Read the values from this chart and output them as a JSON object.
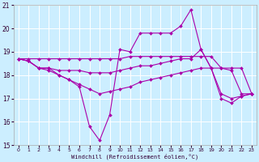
{
  "xlabel": "Windchill (Refroidissement éolien,°C)",
  "bg_color": "#cceeff",
  "grid_color": "#ffffff",
  "line_color": "#aa00aa",
  "xlim": [
    -0.5,
    23.5
  ],
  "ylim": [
    15,
    21
  ],
  "yticks": [
    15,
    16,
    17,
    18,
    19,
    20,
    21
  ],
  "xticks": [
    0,
    1,
    2,
    3,
    4,
    5,
    6,
    7,
    8,
    9,
    10,
    11,
    12,
    13,
    14,
    15,
    16,
    17,
    18,
    19,
    20,
    21,
    22,
    23
  ],
  "series": [
    {
      "x": [
        0,
        1,
        2,
        3,
        4,
        5,
        6,
        7,
        8,
        9,
        10,
        11,
        12,
        13,
        14,
        15,
        16,
        17,
        18,
        19,
        20,
        21,
        22,
        23
      ],
      "y": [
        18.7,
        18.6,
        18.3,
        18.3,
        18.0,
        17.8,
        17.5,
        15.8,
        15.2,
        16.3,
        19.1,
        19.0,
        19.8,
        19.8,
        19.8,
        19.8,
        20.1,
        20.8,
        19.1,
        18.3,
        17.0,
        16.8,
        17.1,
        17.2
      ]
    },
    {
      "x": [
        0,
        1,
        2,
        3,
        4,
        5,
        6,
        7,
        8,
        9,
        10,
        11,
        12,
        13,
        14,
        15,
        16,
        17,
        18,
        19,
        20,
        21,
        22,
        23
      ],
      "y": [
        18.7,
        18.6,
        18.3,
        18.2,
        18.0,
        17.8,
        17.6,
        17.4,
        17.2,
        17.3,
        17.4,
        17.5,
        17.7,
        17.8,
        17.9,
        18.0,
        18.1,
        18.2,
        18.3,
        18.3,
        17.2,
        17.0,
        17.1,
        17.2
      ]
    },
    {
      "x": [
        0,
        1,
        2,
        3,
        4,
        5,
        6,
        7,
        8,
        9,
        10,
        11,
        12,
        13,
        14,
        15,
        16,
        17,
        18,
        19,
        20,
        21,
        22,
        23
      ],
      "y": [
        18.7,
        18.6,
        18.3,
        18.3,
        18.2,
        18.2,
        18.2,
        18.1,
        18.1,
        18.1,
        18.2,
        18.3,
        18.4,
        18.4,
        18.5,
        18.6,
        18.7,
        18.7,
        19.1,
        18.3,
        18.3,
        18.2,
        17.2,
        17.2
      ]
    },
    {
      "x": [
        0,
        1,
        2,
        3,
        4,
        5,
        6,
        7,
        8,
        9,
        10,
        11,
        12,
        13,
        14,
        15,
        16,
        17,
        18,
        19,
        20,
        21,
        22,
        23
      ],
      "y": [
        18.7,
        18.7,
        18.7,
        18.7,
        18.7,
        18.7,
        18.7,
        18.7,
        18.7,
        18.7,
        18.7,
        18.8,
        18.8,
        18.8,
        18.8,
        18.8,
        18.8,
        18.8,
        18.8,
        18.8,
        18.3,
        18.3,
        18.3,
        17.2
      ]
    }
  ]
}
